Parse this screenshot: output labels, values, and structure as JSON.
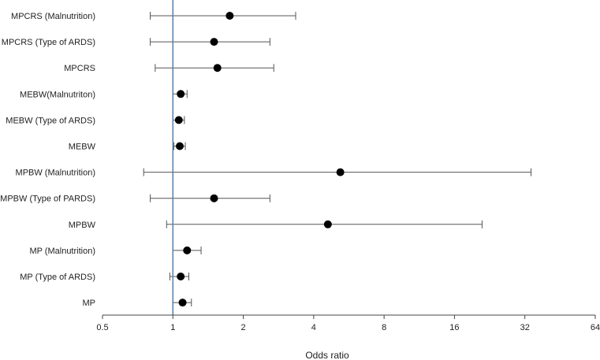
{
  "chart_data": {
    "type": "scatter",
    "subtype": "forest-plot",
    "title": "",
    "xlabel": "Odds ratio",
    "ylabel": "",
    "xscale": "log2",
    "xlim": [
      0.5,
      64
    ],
    "xticks": [
      0.5,
      1,
      2,
      4,
      8,
      16,
      32,
      64
    ],
    "xtick_labels": [
      "0.5",
      "1",
      "2",
      "4",
      "8",
      "16",
      "32",
      "64"
    ],
    "reference_line": 1,
    "grid": false,
    "legend": "none",
    "rows": [
      {
        "label": "MPCRS (Malnutrition)",
        "or": 1.75,
        "lower": 0.8,
        "upper": 3.35
      },
      {
        "label": "MPCRS (Type of ARDS)",
        "or": 1.5,
        "lower": 0.8,
        "upper": 2.6
      },
      {
        "label": "MPCRS",
        "or": 1.55,
        "lower": 0.84,
        "upper": 2.7
      },
      {
        "label": "MEBW(Malnutriton)",
        "or": 1.08,
        "lower": 1.0,
        "upper": 1.15
      },
      {
        "label": "MEBW (Type of ARDS)",
        "or": 1.06,
        "lower": 1.0,
        "upper": 1.12
      },
      {
        "label": "MEBW",
        "or": 1.07,
        "lower": 1.01,
        "upper": 1.13
      },
      {
        "label": "MPBW (Malnutrition)",
        "or": 5.2,
        "lower": 0.75,
        "upper": 34
      },
      {
        "label": "MPBW (Type of PARDS)",
        "or": 1.5,
        "lower": 0.8,
        "upper": 2.6
      },
      {
        "label": "MPBW",
        "or": 4.6,
        "lower": 0.94,
        "upper": 21
      },
      {
        "label": "MP (Malnutrition)",
        "or": 1.15,
        "lower": 1.0,
        "upper": 1.32
      },
      {
        "label": "MP (Type of ARDS)",
        "or": 1.08,
        "lower": 0.97,
        "upper": 1.17
      },
      {
        "label": "MP",
        "or": 1.1,
        "lower": 1.0,
        "upper": 1.2
      }
    ],
    "colors": {
      "marker": "#000000",
      "whisker": "#555555",
      "reference_line": "#5b7fa6",
      "axis": "#444444"
    }
  }
}
